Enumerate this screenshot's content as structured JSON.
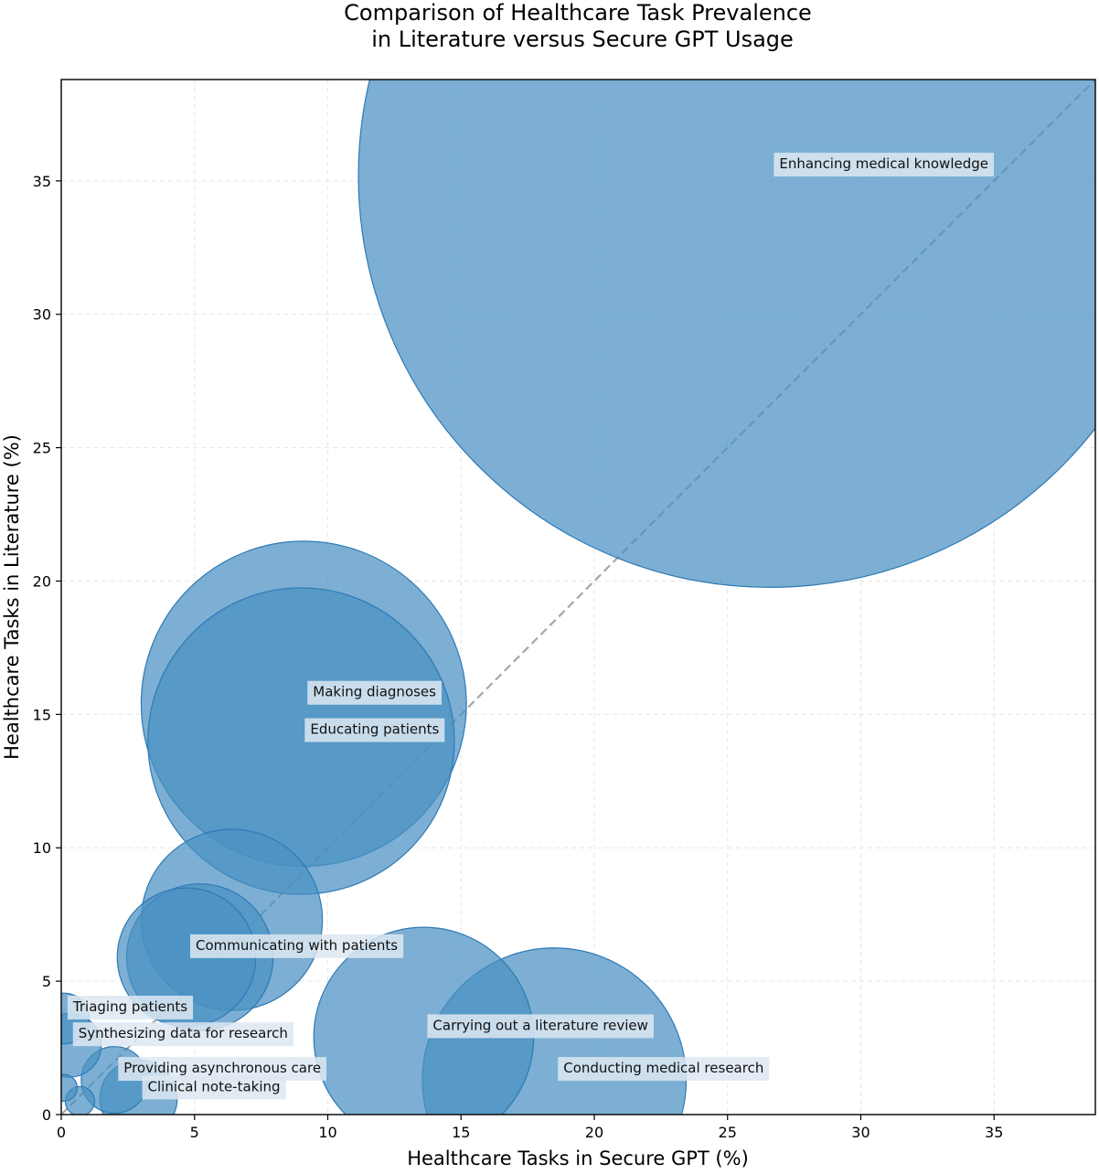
{
  "chart_data": {
    "type": "scatter",
    "title_lines": [
      "Comparison of Healthcare Task Prevalence",
      "in Literature versus Secure GPT Usage"
    ],
    "xlabel": "Healthcare Tasks in Secure GPT (%)",
    "ylabel": "Healthcare Tasks in Literature (%)",
    "xlim": [
      0,
      38.8
    ],
    "ylim": [
      0,
      38.8
    ],
    "xticks": [
      0,
      5,
      10,
      15,
      20,
      25,
      30,
      35
    ],
    "yticks": [
      0,
      5,
      10,
      15,
      20,
      25,
      30,
      35
    ],
    "grid": true,
    "reference_line": "y = x",
    "colors": {
      "bubble_fill": "#4a90c2",
      "bubble_stroke": "#2f79b5",
      "reference_line": "#a6a6a6",
      "grid": "#e6e6e6",
      "label_background": "#dde8f1"
    },
    "points": [
      {
        "label": "Enhancing medical knowledge",
        "x": 26.6,
        "y": 35.2,
        "size": 30.9
      },
      {
        "label": "Making diagnoses",
        "x": 9.1,
        "y": 15.4,
        "size": 12.2
      },
      {
        "label": "Educating patients",
        "x": 9.0,
        "y": 14.0,
        "size": 11.5
      },
      {
        "label": "",
        "x": 6.4,
        "y": 7.3,
        "size": 6.8
      },
      {
        "label": "Communicating with patients",
        "x": 4.7,
        "y": 5.9,
        "size": 5.2
      },
      {
        "label": "",
        "x": 5.2,
        "y": 5.9,
        "size": 5.5
      },
      {
        "label": "Carrying out a literature review",
        "x": 13.6,
        "y": 2.9,
        "size": 8.25
      },
      {
        "label": "Conducting medical research",
        "x": 18.5,
        "y": 1.3,
        "size": 9.9
      },
      {
        "label": "Triaging patients",
        "x": 0.1,
        "y": 3.6,
        "size": 1.9
      },
      {
        "label": "Synthesizing data for research",
        "x": 0.3,
        "y": 2.6,
        "size": 2.4
      },
      {
        "label": "Providing asynchronous care",
        "x": 2.0,
        "y": 1.3,
        "size": 2.5
      },
      {
        "label": "Clinical note-taking",
        "x": 2.9,
        "y": 0.6,
        "size": 2.9
      },
      {
        "label": "",
        "x": 0.1,
        "y": 1.0,
        "size": 1.0
      },
      {
        "label": "",
        "x": 0.7,
        "y": 0.5,
        "size": 1.1
      }
    ]
  }
}
